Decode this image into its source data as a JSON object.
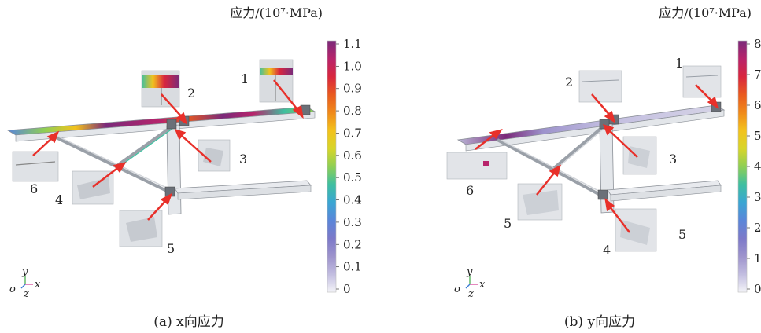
{
  "panels": [
    {
      "id": "a",
      "unit_title": "应力/(10⁷·MPa)",
      "caption": "(a) x向应力",
      "colorbar": {
        "ticks": [
          "1.1",
          "1.0",
          "0.9",
          "0.8",
          "0.7",
          "0.6",
          "0.5",
          "0.4",
          "0.3",
          "0.2",
          "0.1",
          "0"
        ],
        "min": 0,
        "max": 1.1,
        "colors": [
          "#7a2a7a",
          "#b8246b",
          "#d9263e",
          "#e95a1f",
          "#f08a1a",
          "#f3c21c",
          "#d7d52a",
          "#8fcf54",
          "#3fbfa0",
          "#3aa6d3",
          "#5a86d9",
          "#7c79c9",
          "#9d93cc",
          "#c2bde0",
          "#f4f4f8"
        ]
      },
      "callouts": [
        "1",
        "2",
        "3",
        "4",
        "5",
        "6"
      ],
      "axes": {
        "o": "o",
        "x": "x",
        "y": "y",
        "z": "z"
      }
    },
    {
      "id": "b",
      "unit_title": "应力/(10⁷·MPa)",
      "caption": "(b) y向应力",
      "colorbar": {
        "ticks": [
          "8",
          "7",
          "6",
          "5",
          "4",
          "3",
          "2",
          "1",
          "0"
        ],
        "min": 0,
        "max": 8,
        "colors": [
          "#7a2a7a",
          "#b8246b",
          "#d9263e",
          "#e95a1f",
          "#f08a1a",
          "#f3c21c",
          "#d7d52a",
          "#8fcf54",
          "#3fbfa0",
          "#3aa6d3",
          "#5a86d9",
          "#7c79c9",
          "#9d93cc",
          "#c2bde0",
          "#f4f4f8"
        ]
      },
      "callouts": [
        "1",
        "2",
        "3",
        "4",
        "5",
        "6"
      ],
      "axes": {
        "o": "o",
        "x": "x",
        "y": "y",
        "z": "z"
      }
    }
  ],
  "colors": {
    "arrow": "#e8302a",
    "frame_stroke": "#8a8f96",
    "frame_fill": "#e3e6ea",
    "thumb_fill": "#d9dce0"
  }
}
